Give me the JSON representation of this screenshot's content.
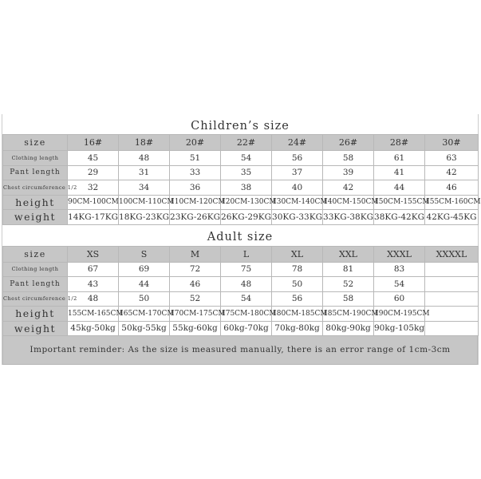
{
  "row_labels": {
    "size": "size",
    "clothing": "Clothing length",
    "pant": "Pant length",
    "chest": "Chest circumference 1/2",
    "height": "height",
    "weight": "weight"
  },
  "children": {
    "title": "Children’s size",
    "sizes": [
      "16#",
      "18#",
      "20#",
      "22#",
      "24#",
      "26#",
      "28#",
      "30#"
    ],
    "clothing": [
      "45",
      "48",
      "51",
      "54",
      "56",
      "58",
      "61",
      "63"
    ],
    "pant": [
      "29",
      "31",
      "33",
      "35",
      "37",
      "39",
      "41",
      "42"
    ],
    "chest": [
      "32",
      "34",
      "36",
      "38",
      "40",
      "42",
      "44",
      "46"
    ],
    "height": [
      "90CM-100CM",
      "100CM-110CM",
      "110CM-120CM",
      "120CM-130CM",
      "130CM-140CM",
      "140CM-150CM",
      "150CM-155CM",
      "155CM-160CM"
    ],
    "weight": [
      "14KG-17KG",
      "18KG-23KG",
      "23KG-26KG",
      "26KG-29KG",
      "30KG-33KG",
      "33KG-38KG",
      "38KG-42KG",
      "42KG-45KG"
    ]
  },
  "adult": {
    "title": "Adult size",
    "sizes": [
      "XS",
      "S",
      "M",
      "L",
      "XL",
      "XXL",
      "XXXL",
      "XXXXL"
    ],
    "clothing": [
      "67",
      "69",
      "72",
      "75",
      "78",
      "81",
      "83",
      ""
    ],
    "pant": [
      "43",
      "44",
      "46",
      "48",
      "50",
      "52",
      "54",
      ""
    ],
    "chest": [
      "48",
      "50",
      "52",
      "54",
      "56",
      "58",
      "60",
      ""
    ],
    "height": [
      "155CM-165CM",
      "165CM-170CM",
      "170CM-175CM",
      "175CM-180CM",
      "180CM-185CM",
      "185CM-190CM",
      "190CM-195CM",
      ""
    ],
    "weight": [
      "45kg-50kg",
      "50kg-55kg",
      "55kg-60kg",
      "60kg-70kg",
      "70kg-80kg",
      "80kg-90kg",
      "90kg-105kg",
      ""
    ]
  },
  "reminder": "Important reminder: As the size is measured manually, there is an error range of 1cm-3cm",
  "colors": {
    "header_bg": "#c6c6c6",
    "border": "#b8b8b8"
  }
}
